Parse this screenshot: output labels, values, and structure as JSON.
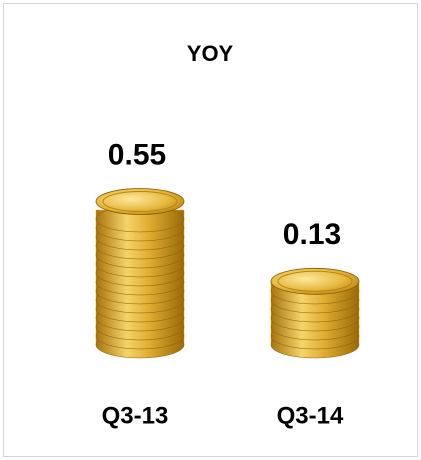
{
  "chart_data": {
    "type": "bar",
    "title": "YOY",
    "title_color": "#9b59d6",
    "categories": [
      "Q3-13",
      "Q3-14"
    ],
    "values": [
      0.55,
      0.13
    ],
    "color": "#d9a521"
  }
}
